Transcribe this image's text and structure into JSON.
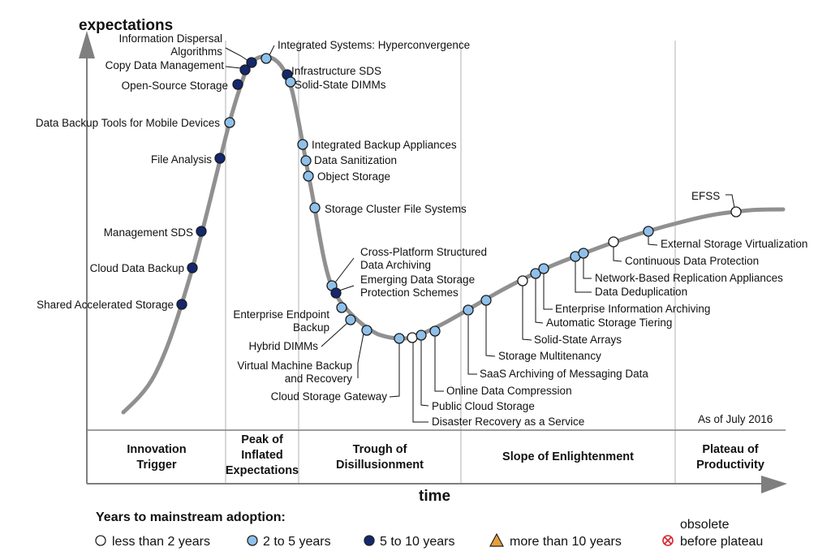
{
  "axes": {
    "y_title": "expectations",
    "x_title": "time"
  },
  "as_of": "As of July 2016",
  "phases": [
    {
      "key": "innovation",
      "lines": [
        "Innovation",
        "Trigger"
      ]
    },
    {
      "key": "peak",
      "lines": [
        "Peak of",
        "Inflated",
        "Expectations"
      ]
    },
    {
      "key": "trough",
      "lines": [
        "Trough of",
        "Disillusionment"
      ]
    },
    {
      "key": "slope",
      "lines": [
        "Slope of Enlightenment"
      ]
    },
    {
      "key": "plateau",
      "lines": [
        "Plateau of",
        "Productivity"
      ]
    }
  ],
  "legend": {
    "title": "Years to mainstream adoption:",
    "items": [
      {
        "key": "lt2",
        "label": "less than 2 years",
        "color": "#ffffff"
      },
      {
        "key": "2to5",
        "label": "2 to 5 years",
        "color": "#8fc0ea"
      },
      {
        "key": "5to10",
        "label": "5 to 10 years",
        "color": "#14286e"
      },
      {
        "key": "gt10",
        "label": "more than 10 years",
        "color": "#e7a03a"
      },
      {
        "key": "obsolete",
        "label_top": "obsolete",
        "label": "before plateau",
        "color": "#d8262c"
      }
    ]
  },
  "technologies": [
    {
      "lines": [
        "Shared Accelerated Storage"
      ],
      "category": "5to10"
    },
    {
      "lines": [
        "Cloud Data Backup"
      ],
      "category": "5to10"
    },
    {
      "lines": [
        "Management SDS"
      ],
      "category": "5to10"
    },
    {
      "lines": [
        "File Analysis"
      ],
      "category": "5to10"
    },
    {
      "lines": [
        "Data Backup Tools for Mobile Devices"
      ],
      "category": "2to5"
    },
    {
      "lines": [
        "Open-Source Storage"
      ],
      "category": "5to10"
    },
    {
      "lines": [
        "Copy Data Management"
      ],
      "category": "5to10"
    },
    {
      "lines": [
        "Information Dispersal",
        "Algorithms"
      ],
      "category": "5to10"
    },
    {
      "lines": [
        "Integrated Systems: Hyperconvergence"
      ],
      "category": "2to5"
    },
    {
      "lines": [
        "Infrastructure SDS"
      ],
      "category": "5to10"
    },
    {
      "lines": [
        "Solid-State DIMMs"
      ],
      "category": "2to5"
    },
    {
      "lines": [
        "Integrated Backup Appliances"
      ],
      "category": "2to5"
    },
    {
      "lines": [
        "Data Sanitization"
      ],
      "category": "2to5"
    },
    {
      "lines": [
        "Object Storage"
      ],
      "category": "2to5"
    },
    {
      "lines": [
        "Storage Cluster File Systems"
      ],
      "category": "2to5"
    },
    {
      "lines": [
        "Cross-Platform Structured",
        "Data Archiving"
      ],
      "category": "2to5"
    },
    {
      "lines": [
        "Emerging Data Storage",
        "Protection Schemes"
      ],
      "category": "5to10"
    },
    {
      "lines": [
        "Enterprise Endpoint",
        "Backup"
      ],
      "category": "2to5"
    },
    {
      "lines": [
        "Hybrid DIMMs"
      ],
      "category": "2to5"
    },
    {
      "lines": [
        "Virtual Machine Backup",
        "and Recovery"
      ],
      "category": "2to5"
    },
    {
      "lines": [
        "Cloud Storage Gateway"
      ],
      "category": "2to5"
    },
    {
      "lines": [
        "Disaster Recovery as a Service"
      ],
      "category": "lt2"
    },
    {
      "lines": [
        "Public Cloud Storage"
      ],
      "category": "2to5"
    },
    {
      "lines": [
        "Online Data Compression"
      ],
      "category": "2to5"
    },
    {
      "lines": [
        "SaaS Archiving of Messaging Data"
      ],
      "category": "2to5"
    },
    {
      "lines": [
        "Storage Multitenancy"
      ],
      "category": "2to5"
    },
    {
      "lines": [
        "Solid-State Arrays"
      ],
      "category": "lt2"
    },
    {
      "lines": [
        "Automatic Storage Tiering"
      ],
      "category": "2to5"
    },
    {
      "lines": [
        "Enterprise Information Archiving"
      ],
      "category": "2to5"
    },
    {
      "lines": [
        "Data Deduplication"
      ],
      "category": "2to5"
    },
    {
      "lines": [
        "Network-Based Replication Appliances"
      ],
      "category": "2to5"
    },
    {
      "lines": [
        "Continuous Data Protection"
      ],
      "category": "lt2"
    },
    {
      "lines": [
        "External Storage Virtualization"
      ],
      "category": "2to5"
    },
    {
      "lines": [
        "EFSS"
      ],
      "category": "lt2"
    }
  ]
}
